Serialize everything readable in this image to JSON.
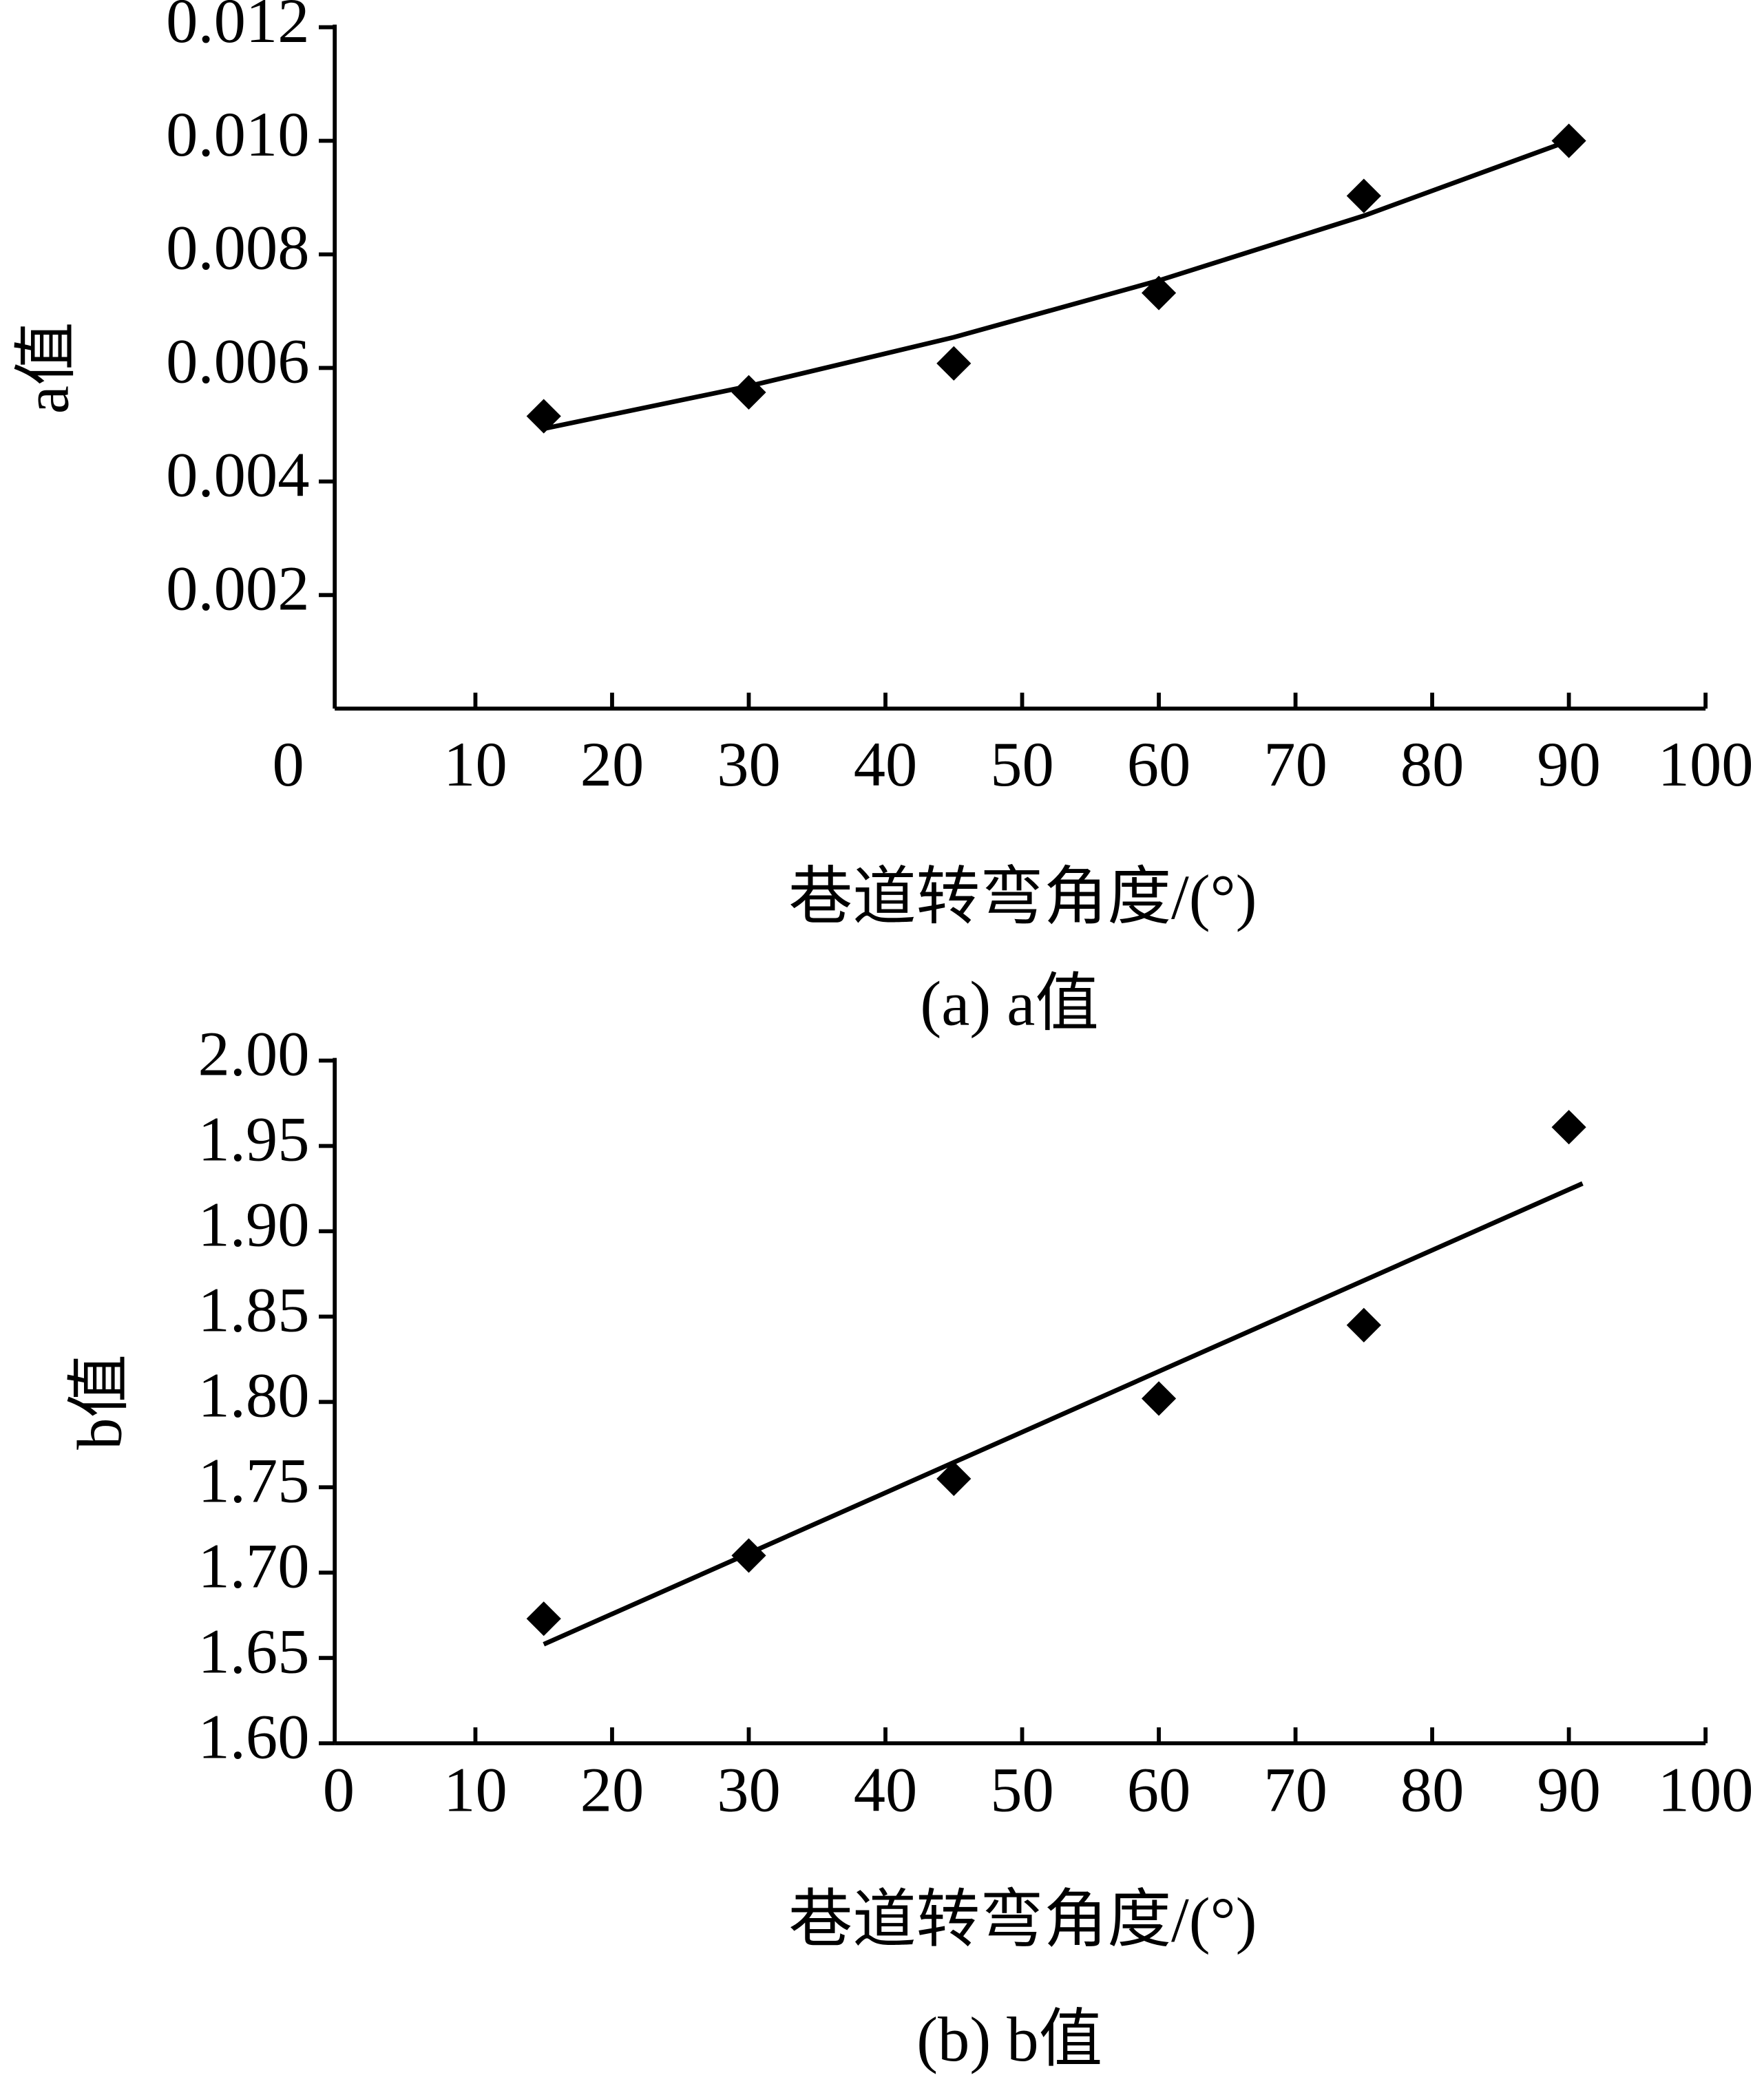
{
  "chart_data": [
    {
      "type": "scatter",
      "title": "(a) a值",
      "x_label": "巷道转弯角度/(°)",
      "y_label": "a值",
      "x": [
        15,
        30,
        45,
        60,
        75,
        90
      ],
      "values": [
        0.00515,
        0.00557,
        0.00608,
        0.00732,
        0.00903,
        0.01
      ],
      "fit": {
        "x": [
          15,
          30,
          45,
          60,
          75,
          90
        ],
        "values": [
          0.00493,
          0.00568,
          0.00654,
          0.00754,
          0.00868,
          0.01
        ]
      },
      "color": "#000000",
      "xlim": [
        0,
        100
      ],
      "xticks": [
        0,
        10,
        20,
        30,
        40,
        50,
        60,
        70,
        80,
        90,
        100
      ],
      "ylim": [
        0,
        0.012
      ],
      "yticks": [
        0.002,
        0.004,
        0.006,
        0.008,
        {
          "value": 0.01,
          "label": "0.010"
        },
        0.012
      ]
    },
    {
      "type": "scatter",
      "title": "(b) b值",
      "x_label": "巷道转弯角度/(°)",
      "y_label": "b值",
      "x": [
        15,
        30,
        45,
        60,
        75,
        90
      ],
      "values": [
        1.673,
        1.71,
        1.755,
        1.802,
        1.845,
        1.961
      ],
      "fit": {
        "x": [
          15,
          91
        ],
        "values": [
          1.658,
          1.928
        ]
      },
      "color": "#000000",
      "xlim": [
        0,
        100
      ],
      "xticks": [
        0,
        10,
        20,
        30,
        40,
        50,
        60,
        70,
        80,
        90,
        100
      ],
      "ylim": [
        1.6,
        2.0
      ],
      "yticks": [
        {
          "value": 1.6,
          "label": "1.60"
        },
        1.65,
        {
          "value": 1.7,
          "label": "1.70"
        },
        1.75,
        {
          "value": 1.8,
          "label": "1.80"
        },
        1.85,
        {
          "value": 1.9,
          "label": "1.90"
        },
        1.95,
        {
          "value": 2.0,
          "label": "2.00"
        }
      ]
    }
  ]
}
